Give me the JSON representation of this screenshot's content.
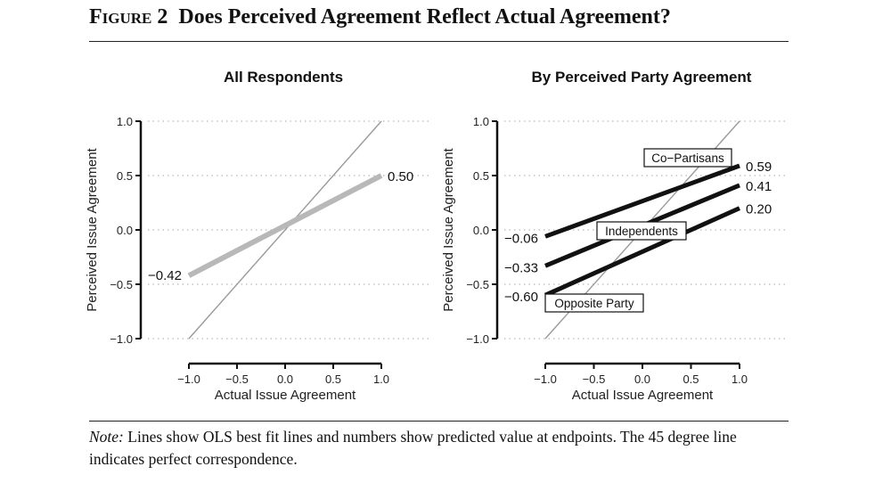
{
  "figure": {
    "label": "Figure 2",
    "title": "Does Perceived Agreement Reflect Actual Agreement?"
  },
  "note": {
    "lead": "Note:",
    "text": "Lines show OLS best fit lines and numbers show predicted value at endpoints. The 45 degree line indicates perfect correspondence."
  },
  "chart_data": [
    {
      "type": "line",
      "title": "All Respondents",
      "xlabel": "Actual Issue Agreement",
      "ylabel": "Perceived Issue Agreement",
      "xlim": [
        -1.0,
        1.0
      ],
      "ylim": [
        -1.0,
        1.0
      ],
      "xticks": [
        "−1.0",
        "−0.5",
        "0.0",
        "0.5",
        "1.0"
      ],
      "yticks": [
        "1.0",
        "0.5",
        "0.0",
        "−0.5",
        "−1.0"
      ],
      "grid": "horizontal dotted",
      "reference_line": {
        "name": "45 degree line",
        "x": [
          -1,
          1
        ],
        "y": [
          -1,
          1
        ],
        "color": "#9a9a9a"
      },
      "series": [
        {
          "name": "All Respondents",
          "x": [
            -1.0,
            1.0
          ],
          "y": [
            -0.42,
            0.5
          ],
          "start_label": "−0.42",
          "end_label": "0.50",
          "color": "#b8b8b8"
        }
      ]
    },
    {
      "type": "line",
      "title": "By Perceived Party Agreement",
      "xlabel": "Actual Issue Agreement",
      "ylabel": "Perceived Issue Agreement",
      "xlim": [
        -1.0,
        1.0
      ],
      "ylim": [
        -1.0,
        1.0
      ],
      "xticks": [
        "−1.0",
        "−0.5",
        "0.0",
        "0.5",
        "1.0"
      ],
      "yticks": [
        "1.0",
        "0.5",
        "0.0",
        "−0.5",
        "−1.0"
      ],
      "grid": "horizontal dotted",
      "reference_line": {
        "name": "45 degree line",
        "x": [
          -1,
          1
        ],
        "y": [
          -1,
          1
        ],
        "color": "#9a9a9a"
      },
      "series": [
        {
          "name": "Co−Partisans",
          "x": [
            -1.0,
            1.0
          ],
          "y": [
            -0.06,
            0.59
          ],
          "start_label": "−0.06",
          "end_label": "0.59",
          "color": "#111111"
        },
        {
          "name": "Independents",
          "x": [
            -1.0,
            1.0
          ],
          "y": [
            -0.33,
            0.41
          ],
          "start_label": "−0.33",
          "end_label": "0.41",
          "color": "#111111"
        },
        {
          "name": "Opposite Party",
          "x": [
            -1.0,
            1.0
          ],
          "y": [
            -0.6,
            0.2
          ],
          "start_label": "−0.60",
          "end_label": "0.20",
          "color": "#111111"
        }
      ]
    }
  ]
}
